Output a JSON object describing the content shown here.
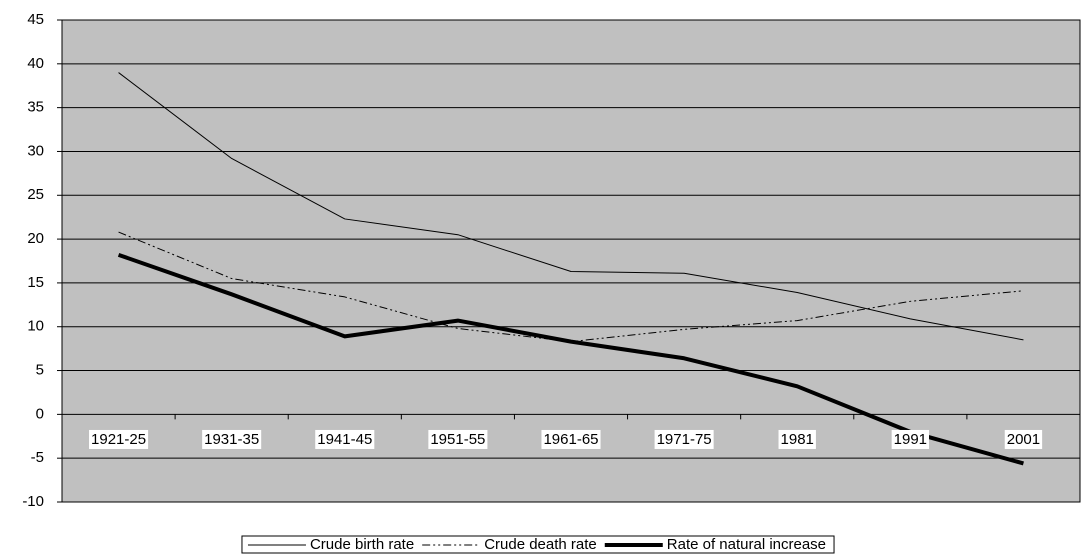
{
  "chart_data": {
    "type": "line",
    "categories": [
      "1921-25",
      "1931-35",
      "1941-45",
      "1951-55",
      "1961-65",
      "1971-75",
      "1981",
      "1991",
      "2001"
    ],
    "series": [
      {
        "name": "Crude birth rate",
        "color": "#000000",
        "linestyle": "solid",
        "linewidth": 1,
        "values": [
          39,
          29.2,
          22.3,
          20.5,
          16.3,
          16.1,
          13.9,
          10.9,
          8.5
        ]
      },
      {
        "name": "Crude death rate",
        "color": "#000000",
        "linestyle": "dashdot",
        "linewidth": 1,
        "values": [
          20.8,
          15.5,
          13.4,
          9.8,
          8.3,
          9.7,
          10.7,
          12.9,
          14.1
        ]
      },
      {
        "name": "Rate of natural increase",
        "color": "#000000",
        "linestyle": "solid",
        "linewidth": 4,
        "values": [
          18.2,
          13.7,
          8.9,
          10.7,
          8.3,
          6.4,
          3.2,
          -2.0,
          -5.6
        ]
      }
    ],
    "ylim": [
      -10,
      45
    ],
    "yticks": [
      -10,
      -5,
      0,
      5,
      10,
      15,
      20,
      25,
      30,
      35,
      40,
      45
    ],
    "grid": true,
    "legend": "bottom",
    "background": "#c0c0c0"
  }
}
